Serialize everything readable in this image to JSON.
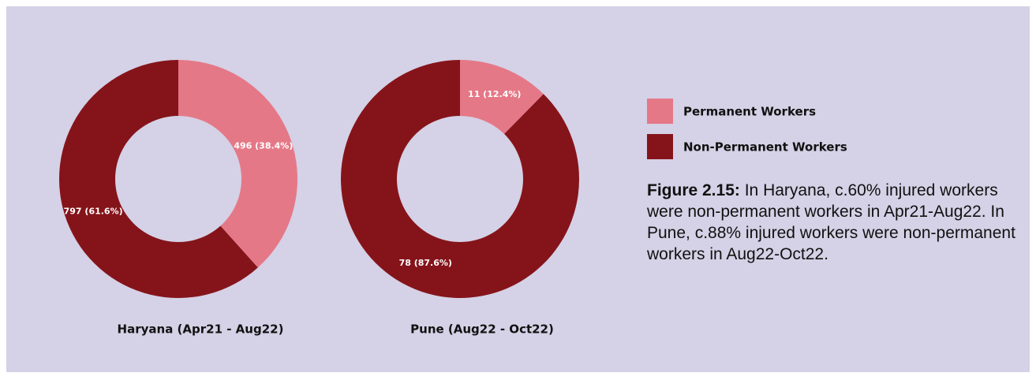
{
  "chart_data": [
    {
      "type": "donut",
      "title": "Haryana (Apr21 - Aug22)",
      "categories": [
        "Permanent Workers",
        "Non-Permanent Workers"
      ],
      "values": [
        496,
        797
      ],
      "value_labels": [
        "496 (38.4%)",
        "797 (61.6%)"
      ],
      "colors": [
        "#e57887",
        "#85141a"
      ]
    },
    {
      "type": "donut",
      "title": "Pune (Aug22 - Oct22)",
      "categories": [
        "Permanent Workers",
        "Non-Permanent Workers"
      ],
      "values": [
        11,
        78
      ],
      "value_labels": [
        "11 (12.4%)",
        "78 (87.6%)"
      ],
      "colors": [
        "#e57887",
        "#85141a"
      ]
    }
  ],
  "caption": {
    "label": "Figure 2.15:",
    "text": "In Haryana, c.60% injured workers were non-permanent workers in Apr21-Aug22. In Pune, c.88% injured workers were non-permanent workers in Aug22-Oct22."
  }
}
